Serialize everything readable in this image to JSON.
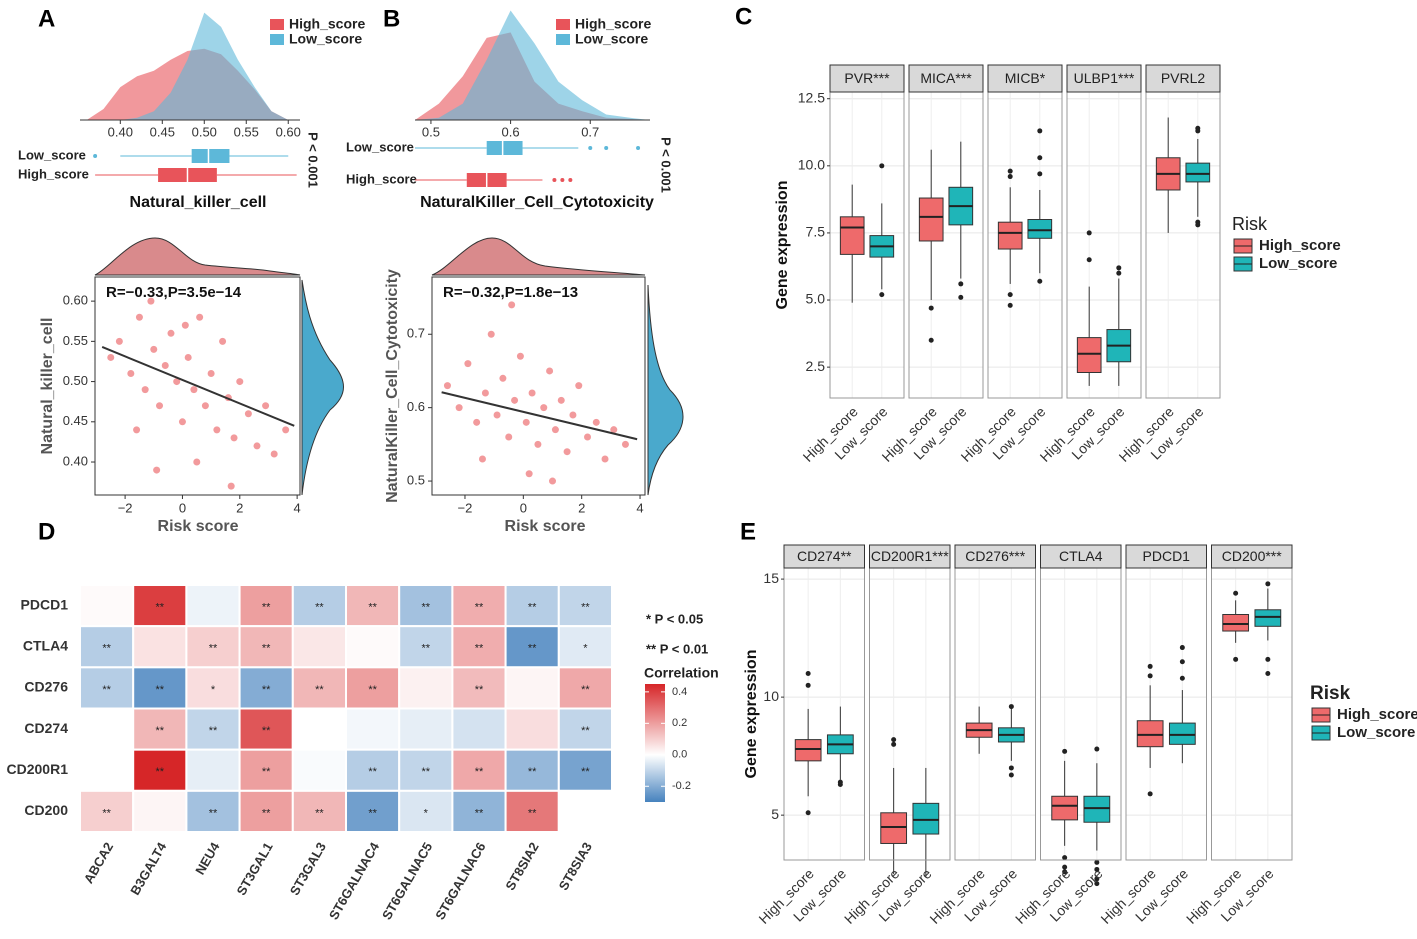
{
  "chart_data": [
    {
      "type": "density",
      "label": "A",
      "x": [
        0.36,
        0.38,
        0.4,
        0.42,
        0.44,
        0.46,
        0.48,
        0.5,
        0.52,
        0.54,
        0.56,
        0.58,
        0.6
      ],
      "series": [
        {
          "name": "High_score",
          "color": "#e8545a",
          "values": [
            0,
            0.1,
            0.3,
            0.4,
            0.45,
            0.55,
            0.63,
            0.65,
            0.6,
            0.45,
            0.28,
            0.08,
            0
          ]
        },
        {
          "name": "Low_score",
          "color": "#5db8d9",
          "values": [
            0,
            0,
            0,
            0.02,
            0.08,
            0.25,
            0.55,
            0.98,
            0.85,
            0.55,
            0.3,
            0.08,
            0
          ]
        }
      ],
      "xlim": [
        0.352,
        0.614
      ],
      "ylim": [
        0,
        1.05
      ],
      "xticks": [
        {
          "value": 0.4,
          "label": "0.40"
        },
        0.45,
        {
          "value": 0.5,
          "label": "0.50"
        },
        0.55,
        {
          "value": 0.6,
          "label": "0.60"
        }
      ]
    },
    {
      "type": "boxplot",
      "categories": [
        "Low_score",
        "High_score"
      ],
      "colors": [
        "#5db8d9",
        "#e8545a"
      ],
      "boxes": [
        {
          "min": 0.4,
          "q1": 0.485,
          "median": 0.505,
          "q3": 0.53,
          "max": 0.6,
          "outliers": [
            0.37
          ]
        },
        {
          "min": 0.37,
          "q1": 0.445,
          "median": 0.48,
          "q3": 0.515,
          "max": 0.61
        }
      ],
      "xlim": [
        0.352,
        0.614
      ],
      "annotation": "P < 0.001",
      "xlabel": "Natural_killer_cell"
    },
    {
      "type": "scatter",
      "color": "#e8474a",
      "x": [
        -2.5,
        -2.2,
        -1.8,
        -1.5,
        -1.3,
        -1.1,
        -1.0,
        -0.8,
        -0.6,
        -0.4,
        -0.2,
        0,
        0.2,
        0.4,
        0.6,
        0.8,
        1.0,
        1.2,
        1.4,
        1.6,
        1.8,
        2.0,
        2.3,
        2.6,
        2.9,
        3.2,
        3.6,
        -0.9,
        0.5,
        1.7,
        -1.6,
        0.1
      ],
      "values": [
        0.53,
        0.55,
        0.51,
        0.58,
        0.49,
        0.6,
        0.54,
        0.47,
        0.52,
        0.56,
        0.5,
        0.45,
        0.53,
        0.49,
        0.58,
        0.47,
        0.51,
        0.44,
        0.55,
        0.48,
        0.43,
        0.5,
        0.46,
        0.42,
        0.47,
        0.41,
        0.44,
        0.39,
        0.4,
        0.37,
        0.44,
        0.57
      ],
      "fit": {
        "x": [
          -2.8,
          3.9
        ],
        "y": [
          0.543,
          0.445
        ]
      },
      "xlim": [
        -3.05,
        4.1
      ],
      "ylim": [
        0.359,
        0.63
      ],
      "xticks": [
        {
          "value": -2,
          "label": "−2"
        },
        0,
        2,
        4
      ],
      "yticks": [
        {
          "value": 0.4,
          "label": "0.40"
        },
        0.45,
        {
          "value": 0.5,
          "label": "0.50"
        },
        0.55,
        {
          "value": 0.6,
          "label": "0.60"
        }
      ],
      "xlabel": "Risk score",
      "ylabel": "Natural_killer_cell",
      "annotation": "R=−0.33,P=3.5e−14"
    },
    {
      "type": "density",
      "label": "B",
      "x": [
        0.48,
        0.51,
        0.54,
        0.57,
        0.6,
        0.63,
        0.66,
        0.69,
        0.72,
        0.75,
        0.775
      ],
      "series": [
        {
          "name": "High_score",
          "color": "#e8545a",
          "values": [
            0,
            0.15,
            0.4,
            0.75,
            0.8,
            0.35,
            0.15,
            0.08,
            0.02,
            0.01,
            0
          ]
        },
        {
          "name": "Low_score",
          "color": "#5db8d9",
          "values": [
            0,
            0.02,
            0.15,
            0.55,
            1.0,
            0.7,
            0.35,
            0.18,
            0.05,
            0.02,
            0
          ]
        }
      ],
      "xlim": [
        0.48,
        0.775
      ],
      "ylim": [
        0,
        1.05
      ],
      "xticks": [
        0.5,
        0.6,
        0.7
      ]
    },
    {
      "type": "boxplot",
      "categories": [
        "Low_score",
        "High_score"
      ],
      "colors": [
        "#5db8d9",
        "#e8545a"
      ],
      "boxes": [
        {
          "min": 0.48,
          "q1": 0.57,
          "median": 0.59,
          "q3": 0.615,
          "max": 0.685,
          "outliers": [
            0.7,
            0.72,
            0.76
          ]
        },
        {
          "min": 0.48,
          "q1": 0.545,
          "median": 0.57,
          "q3": 0.595,
          "max": 0.64,
          "outliers": [
            0.655,
            0.665,
            0.675
          ]
        }
      ],
      "xlim": [
        0.48,
        0.775
      ],
      "annotation": "P < 0.001",
      "xlabel": "NaturalKiller_Cell_Cytotoxicity"
    },
    {
      "type": "scatter",
      "color": "#e8474a",
      "x": [
        -2.6,
        -2.2,
        -1.9,
        -1.6,
        -1.3,
        -1.1,
        -0.9,
        -0.7,
        -0.5,
        -0.3,
        -0.1,
        0.1,
        0.3,
        0.5,
        0.7,
        0.9,
        1.1,
        1.3,
        1.5,
        1.7,
        1.9,
        2.2,
        2.5,
        2.8,
        3.1,
        3.5,
        -1.4,
        0.2,
        -0.4,
        1.0
      ],
      "values": [
        0.63,
        0.6,
        0.66,
        0.58,
        0.62,
        0.7,
        0.59,
        0.64,
        0.56,
        0.61,
        0.67,
        0.58,
        0.62,
        0.55,
        0.6,
        0.65,
        0.57,
        0.61,
        0.54,
        0.59,
        0.63,
        0.56,
        0.58,
        0.53,
        0.57,
        0.55,
        0.53,
        0.51,
        0.74,
        0.5
      ],
      "fit": {
        "x": [
          -2.8,
          3.9
        ],
        "y": [
          0.621,
          0.557
        ]
      },
      "xlim": [
        -3.13,
        4.17
      ],
      "ylim": [
        0.481,
        0.778
      ],
      "xticks": [
        {
          "value": -2,
          "label": "−2"
        },
        0,
        2,
        4
      ],
      "yticks": [
        0.5,
        0.6,
        0.7
      ],
      "xlabel": "Risk score",
      "ylabel": "NaturalKiller_Cell_Cytotoxicity",
      "annotation": "R=−0.32,P=1.8e−13"
    },
    {
      "type": "faceted_boxplot",
      "label": "C",
      "categories": [
        "High_score",
        "Low_score"
      ],
      "colors": [
        "#ee6a6b",
        "#1fb5b8"
      ],
      "legend_title": "Risk",
      "ylabel": "Gene expression",
      "ylim": [
        1.35,
        12.75
      ],
      "yticks": [
        2.5,
        {
          "value": 5,
          "label": "5.0"
        },
        7.5,
        {
          "value": 10,
          "label": "10.0"
        },
        12.5
      ],
      "facets": [
        {
          "name": "PVR***",
          "boxes": [
            {
              "min": 4.9,
              "q1": 6.7,
              "median": 7.7,
              "q3": 8.1,
              "max": 9.3
            },
            {
              "min": 5.4,
              "q1": 6.6,
              "median": 7.0,
              "q3": 7.4,
              "max": 8.6,
              "outliers": [
                10.0,
                5.2
              ]
            }
          ]
        },
        {
          "name": "MICA***",
          "boxes": [
            {
              "min": 5.0,
              "q1": 7.2,
              "median": 8.1,
              "q3": 8.8,
              "max": 10.6,
              "outliers": [
                4.7,
                3.5
              ]
            },
            {
              "min": 5.8,
              "q1": 7.8,
              "median": 8.5,
              "q3": 9.2,
              "max": 10.9,
              "outliers": [
                5.6,
                5.1
              ]
            }
          ]
        },
        {
          "name": "MICB*",
          "boxes": [
            {
              "min": 5.6,
              "q1": 6.9,
              "median": 7.5,
              "q3": 7.9,
              "max": 9.2,
              "outliers": [
                9.8,
                9.6,
                5.2,
                4.8
              ]
            },
            {
              "min": 6.0,
              "q1": 7.3,
              "median": 7.6,
              "q3": 8.0,
              "max": 9.1,
              "outliers": [
                11.3,
                10.3,
                9.7,
                5.7
              ]
            }
          ]
        },
        {
          "name": "ULBP1***",
          "boxes": [
            {
              "min": 1.8,
              "q1": 2.3,
              "median": 3.0,
              "q3": 3.6,
              "max": 5.5,
              "outliers": [
                7.5,
                6.5
              ]
            },
            {
              "min": 1.8,
              "q1": 2.7,
              "median": 3.3,
              "q3": 3.9,
              "max": 5.8,
              "outliers": [
                6.2,
                6.0
              ]
            }
          ]
        },
        {
          "name": "PVRL2",
          "boxes": [
            {
              "min": 7.5,
              "q1": 9.1,
              "median": 9.7,
              "q3": 10.3,
              "max": 11.8
            },
            {
              "min": 8.1,
              "q1": 9.4,
              "median": 9.7,
              "q3": 10.1,
              "max": 11.0,
              "outliers": [
                11.4,
                11.3,
                7.9,
                7.8
              ]
            }
          ]
        }
      ]
    },
    {
      "type": "heatmap",
      "label": "D",
      "rows": [
        "PDCD1",
        "CTLA4",
        "CD276",
        "CD274",
        "CD200R1",
        "CD200"
      ],
      "columns": [
        "ABCA2",
        "B3GALT4",
        "NEU4",
        "ST3GAL1",
        "ST3GAL3",
        "ST6GALNAC4",
        "ST6GALNAC5",
        "ST6GALNAC6",
        "ST8SIA2",
        "ST8SIA3"
      ],
      "values": [
        [
          0.01,
          0.4,
          -0.03,
          0.2,
          -0.12,
          0.15,
          -0.15,
          0.17,
          -0.12,
          -0.1
        ],
        [
          -0.12,
          0.06,
          0.1,
          0.15,
          0.05,
          0.01,
          -0.1,
          0.17,
          -0.25,
          -0.05
        ],
        [
          -0.12,
          -0.25,
          0.07,
          -0.2,
          0.15,
          0.2,
          0.03,
          0.14,
          0.02,
          0.18
        ],
        [
          0.0,
          0.15,
          -0.1,
          0.35,
          0.0,
          -0.02,
          -0.04,
          -0.07,
          0.07,
          -0.1
        ],
        [
          0.0,
          0.45,
          -0.04,
          0.2,
          -0.01,
          -0.12,
          -0.1,
          0.18,
          -0.17,
          -0.22
        ],
        [
          0.1,
          0.02,
          -0.15,
          0.2,
          0.15,
          -0.23,
          -0.06,
          -0.18,
          0.28,
          0.0
        ]
      ],
      "significance": [
        [
          null,
          "**",
          null,
          "**",
          "**",
          "**",
          "**",
          "**",
          "**",
          "**"
        ],
        [
          "**",
          null,
          "**",
          "**",
          null,
          null,
          "**",
          "**",
          "**",
          "*"
        ],
        [
          "**",
          "**",
          "*",
          "**",
          "**",
          "**",
          null,
          "**",
          null,
          "**"
        ],
        [
          null,
          "**",
          "**",
          "**",
          null,
          null,
          null,
          null,
          null,
          "**"
        ],
        [
          null,
          "**",
          null,
          "**",
          null,
          "**",
          "**",
          "**",
          "**",
          "**"
        ],
        [
          "**",
          null,
          "**",
          "**",
          "**",
          "**",
          "*",
          "**",
          "**",
          null
        ]
      ],
      "notes": [
        "* P < 0.05",
        "** P < 0.01"
      ],
      "legend_title": "Correlation",
      "clim": [
        -0.3,
        0.45
      ],
      "colorbar_ticks": [
        0.4,
        0.2,
        {
          "value": 0,
          "label": "0.0"
        },
        {
          "value": -0.2,
          "label": "-0.2"
        }
      ]
    },
    {
      "type": "faceted_boxplot",
      "label": "E",
      "categories": [
        "High_score",
        "Low_score"
      ],
      "colors": [
        "#ee6a6b",
        "#1fb5b8"
      ],
      "legend_title": "Risk",
      "ylabel": "Gene expression",
      "ylim": [
        3.1,
        15.47
      ],
      "yticks": [
        5,
        10,
        15
      ],
      "facets": [
        {
          "name": "CD274**",
          "boxes": [
            {
              "min": 5.8,
              "q1": 7.3,
              "median": 7.8,
              "q3": 8.2,
              "max": 9.5,
              "outliers": [
                11.0,
                10.5,
                5.1
              ]
            },
            {
              "min": 6.5,
              "q1": 7.6,
              "median": 8.0,
              "q3": 8.4,
              "max": 9.6,
              "outliers": [
                6.3,
                6.4
              ]
            }
          ]
        },
        {
          "name": "CD200R1***",
          "boxes": [
            {
              "min": 2.5,
              "q1": 3.8,
              "median": 4.5,
              "q3": 5.1,
              "max": 7.0,
              "outliers": [
                8.2,
                8.0
              ]
            },
            {
              "min": 2.4,
              "q1": 4.2,
              "median": 4.8,
              "q3": 5.5,
              "max": 7.0
            }
          ]
        },
        {
          "name": "CD276***",
          "boxes": [
            {
              "min": 7.6,
              "q1": 8.3,
              "median": 8.6,
              "q3": 8.9,
              "max": 9.6
            },
            {
              "min": 7.3,
              "q1": 8.1,
              "median": 8.4,
              "q3": 8.7,
              "max": 9.5,
              "outliers": [
                9.6,
                7.0,
                6.7
              ]
            }
          ]
        },
        {
          "name": "CTLA4",
          "boxes": [
            {
              "min": 3.7,
              "q1": 4.8,
              "median": 5.4,
              "q3": 5.8,
              "max": 7.3,
              "outliers": [
                7.7,
                3.2,
                2.8,
                2.6
              ]
            },
            {
              "min": 3.5,
              "q1": 4.7,
              "median": 5.3,
              "q3": 5.8,
              "max": 7.2,
              "outliers": [
                7.8,
                3.0,
                2.7,
                2.3,
                2.1
              ]
            }
          ]
        },
        {
          "name": "PDCD1",
          "boxes": [
            {
              "min": 7.0,
              "q1": 7.9,
              "median": 8.4,
              "q3": 9.0,
              "max": 10.5,
              "outliers": [
                11.3,
                10.9,
                5.9
              ]
            },
            {
              "min": 7.2,
              "q1": 8.0,
              "median": 8.4,
              "q3": 8.9,
              "max": 10.3,
              "outliers": [
                12.1,
                11.5,
                10.8
              ]
            }
          ]
        },
        {
          "name": "CD200***",
          "boxes": [
            {
              "min": 12.3,
              "q1": 12.8,
              "median": 13.1,
              "q3": 13.5,
              "max": 14.1,
              "outliers": [
                14.4,
                11.6
              ]
            },
            {
              "min": 12.4,
              "q1": 13.0,
              "median": 13.4,
              "q3": 13.7,
              "max": 14.6,
              "outliers": [
                14.8,
                11.6,
                11.0
              ]
            }
          ]
        }
      ]
    }
  ]
}
